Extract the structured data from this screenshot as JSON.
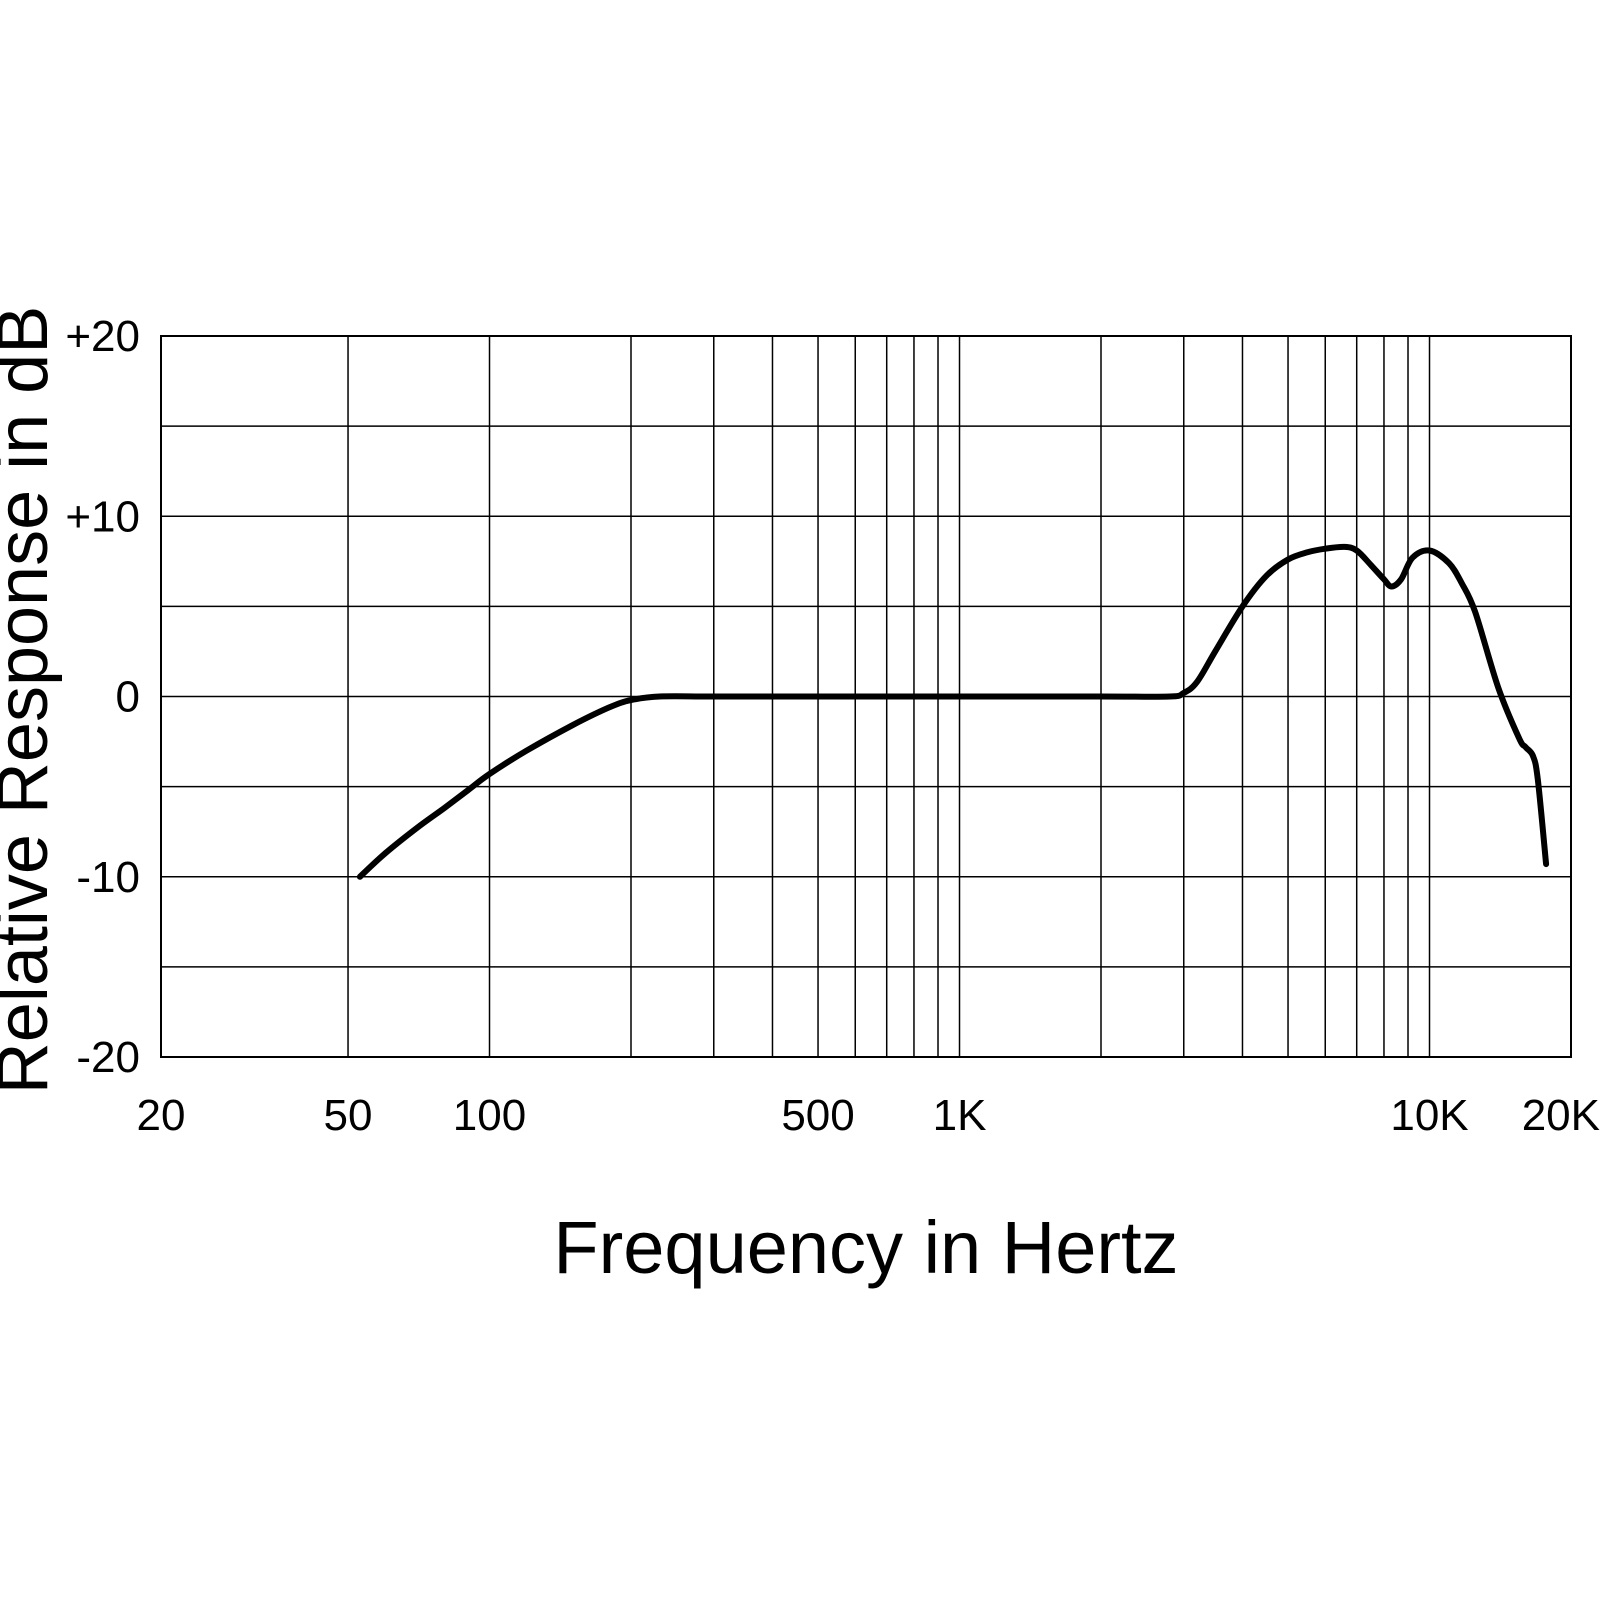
{
  "chart_data": {
    "type": "line",
    "title": "",
    "xlabel": "Frequency in Hertz",
    "ylabel": "Relative Response in dB",
    "x_scale": "log",
    "xlim": [
      20,
      20000
    ],
    "ylim": [
      -20,
      20
    ],
    "x_ticks": [
      {
        "value": 20,
        "label": "20"
      },
      {
        "value": 50,
        "label": "50"
      },
      {
        "value": 100,
        "label": "100"
      },
      {
        "value": 500,
        "label": "500"
      },
      {
        "value": 1000,
        "label": "1K"
      },
      {
        "value": 10000,
        "label": "10K"
      },
      {
        "value": 20000,
        "label": "20K"
      }
    ],
    "y_ticks": [
      {
        "value": 20,
        "label": "+20"
      },
      {
        "value": 10,
        "label": "+10"
      },
      {
        "value": 0,
        "label": "0"
      },
      {
        "value": -10,
        "label": "-10"
      },
      {
        "value": -20,
        "label": "-20"
      }
    ],
    "x_gridlines": [
      20,
      50,
      100,
      200,
      300,
      400,
      500,
      600,
      700,
      800,
      900,
      1000,
      2000,
      3000,
      4000,
      5000,
      6000,
      7000,
      8000,
      9000,
      10000,
      20000
    ],
    "y_gridlines": [
      20,
      15,
      10,
      5,
      0,
      -5,
      -10,
      -15,
      -20
    ],
    "grid": true,
    "series": [
      {
        "color": "#000000",
        "x": [
          53,
          60,
          70,
          80,
          90,
          100,
          120,
          150,
          180,
          200,
          230,
          300,
          500,
          1000,
          2000,
          2800,
          3000,
          3200,
          3500,
          4000,
          4500,
          5000,
          5500,
          6000,
          6600,
          7000,
          7500,
          8000,
          8300,
          8700,
          9200,
          10000,
          11000,
          11700,
          12500,
          14000,
          15500,
          16000,
          16600,
          17000,
          17700
        ],
        "y": [
          -10,
          -8.7,
          -7.3,
          -6.2,
          -5.2,
          -4.3,
          -3.0,
          -1.6,
          -0.6,
          -0.2,
          0,
          0,
          0,
          0,
          0,
          0,
          0.2,
          0.8,
          2.5,
          5,
          6.7,
          7.6,
          8.0,
          8.2,
          8.3,
          8.1,
          7.3,
          6.5,
          6.1,
          6.5,
          7.7,
          8.1,
          7.4,
          6.3,
          4.7,
          0.5,
          -2.3,
          -2.8,
          -3.3,
          -4.6,
          -9.3
        ]
      }
    ]
  }
}
